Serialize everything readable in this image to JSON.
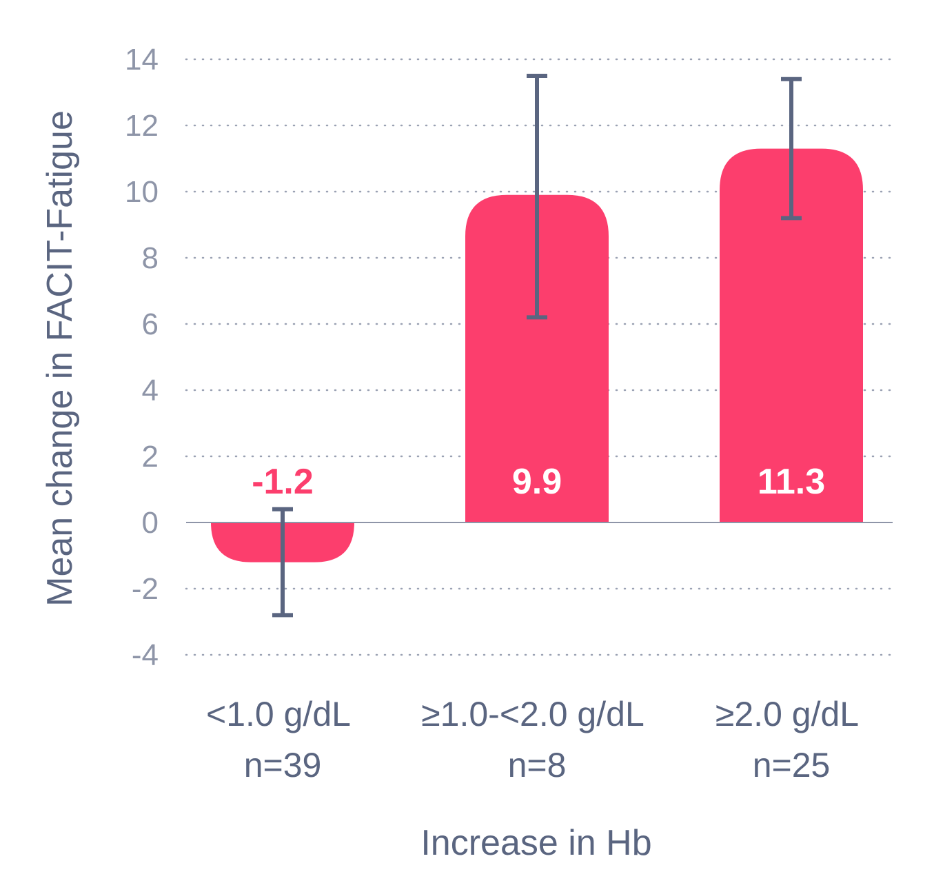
{
  "chart_data": {
    "type": "bar",
    "xlabel": "Increase in Hb",
    "ylabel": "Mean change in FACIT-Fatigue",
    "ylim": [
      -4,
      14
    ],
    "yticks": [
      14,
      12,
      10,
      8,
      6,
      4,
      2,
      0,
      -2,
      -4
    ],
    "grid": true,
    "categories": [
      {
        "label": "<1.0 g/dL",
        "n": "n=39"
      },
      {
        "label": "≥1.0-<2.0 g/dL",
        "n": "n=8"
      },
      {
        "label": "≥2.0 g/dL",
        "n": "n=25"
      }
    ],
    "values": [
      -1.2,
      9.9,
      11.3
    ],
    "value_labels": [
      "-1.2",
      "9.9",
      "11.3"
    ],
    "error_bars": [
      {
        "low": -2.8,
        "high": 0.4
      },
      {
        "low": 6.2,
        "high": 13.5
      },
      {
        "low": 9.2,
        "high": 13.4
      }
    ],
    "colors": {
      "bar": "#fc3e6d",
      "error_bar": "#5a6580",
      "grid": "#9aa1b3",
      "axis": "#8e95a8"
    }
  }
}
